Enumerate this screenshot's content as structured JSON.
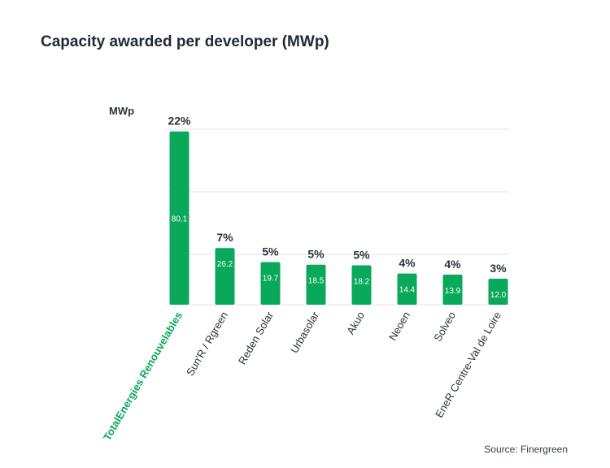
{
  "title": "Capacity awarded per developer (MWp)",
  "source": "Source: Finergreen",
  "chart_data": {
    "type": "bar",
    "title": "Capacity awarded per developer (MWp)",
    "ylabel": "MWp",
    "xlabel": "",
    "ylim": [
      0,
      80
    ],
    "grid": true,
    "categories": [
      "TotalEnergies Renouvelables",
      "Sun'R / Rgreen",
      "Reden Solar",
      "Urbasolar",
      "Akuo",
      "Neoen",
      "Solveo",
      "EneR Centre-Val de Loire"
    ],
    "values": [
      80.1,
      26.2,
      19.7,
      18.5,
      18.2,
      14.4,
      13.9,
      12.0
    ],
    "value_labels": [
      "80.1",
      "26.2",
      "19.7",
      "18.5",
      "18.2",
      "14.4",
      "13.9",
      "12.0"
    ],
    "percent_labels": [
      "22%",
      "7%",
      "5%",
      "5%",
      "5%",
      "4%",
      "4%",
      "3%"
    ],
    "highlighted_category": "TotalEnergies Renouvelables",
    "colors": {
      "bar": "#0aa85a",
      "highlight_label": "#0aa85a",
      "label": "#2b333d",
      "grid": "#e3e3e3"
    }
  }
}
